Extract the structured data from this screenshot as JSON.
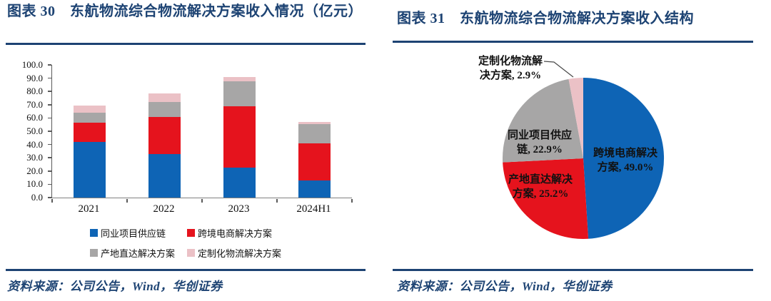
{
  "page": {
    "left_panel": {
      "title": "图表 30　东航物流综合物流解决方案收入情况（亿元）",
      "source": "资料来源：公司公告，Wind，华创证券"
    },
    "right_panel": {
      "title": "图表 31　东航物流综合物流解决方案收入结构",
      "source": "资料来源：公司公告，Wind，华创证券"
    }
  },
  "colors": {
    "navy": "#1D4373",
    "series_blue": "#0E64B5",
    "series_red": "#E5131D",
    "series_gray": "#A7A6A6",
    "series_pink": "#EBC1C6",
    "axis": "#5A5A5A",
    "label_text": "#111111"
  },
  "chart_data": [
    {
      "type": "bar",
      "stacked": true,
      "title": "东航物流综合物流解决方案收入情况（亿元）",
      "categories": [
        "2021",
        "2022",
        "2023",
        "2024H1"
      ],
      "series": [
        {
          "name": "同业项目供应链",
          "color": "#0E64B5",
          "values": [
            42.0,
            33.0,
            22.5,
            13.1
          ]
        },
        {
          "name": "跨境电商解决方案",
          "color": "#E5131D",
          "values": [
            14.5,
            27.5,
            46.5,
            28.0
          ]
        },
        {
          "name": "产地直达解决方案",
          "color": "#A7A6A6",
          "values": [
            7.5,
            11.5,
            18.5,
            14.4
          ]
        },
        {
          "name": "定制化物流解决方案",
          "color": "#EBC1C6",
          "values": [
            5.5,
            6.5,
            3.5,
            1.7
          ]
        }
      ],
      "xlabel": "",
      "ylabel": "",
      "ylim": [
        0,
        100
      ],
      "ystep": 10,
      "y_tick_labels": [
        "100.0",
        "90.0",
        "80.0",
        "70.0",
        "60.0",
        "50.0",
        "40.0",
        "30.0",
        "20.0",
        "10.0",
        "0.0"
      ],
      "grid": false,
      "legend_position": "bottom",
      "legend_rows": [
        [
          "同业项目供应链",
          "跨境电商解决方案"
        ],
        [
          "产地直达解决方案",
          "定制化物流解决方案"
        ]
      ]
    },
    {
      "type": "pie",
      "title": "东航物流综合物流解决方案收入结构",
      "start_angle_deg": 0,
      "direction": "clockwise",
      "slices": [
        {
          "label": "跨境电商解决方案",
          "value": 49.0,
          "color": "#0E64B5",
          "label_outside": false
        },
        {
          "label": "产地直达解决方案",
          "value": 25.2,
          "color": "#E5131D",
          "label_outside": false
        },
        {
          "label": "同业项目供应链",
          "value": 22.9,
          "color": "#A7A6A6",
          "label_outside": false
        },
        {
          "label": "定制化物流解决方案",
          "value": 2.9,
          "color": "#EBC1C6",
          "label_outside": true
        }
      ],
      "legend_position": "none"
    }
  ]
}
